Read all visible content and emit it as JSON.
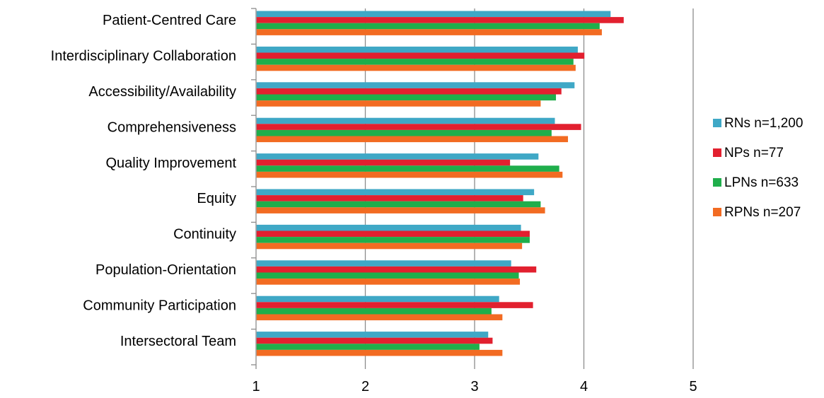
{
  "chart_data": {
    "type": "bar",
    "orientation": "horizontal",
    "title": "",
    "xlabel": "",
    "ylabel": "",
    "xlim": [
      1,
      5
    ],
    "xticks": [
      1,
      2,
      3,
      4,
      5
    ],
    "grid": true,
    "legend_position": "right",
    "categories": [
      "Patient-Centred Care",
      "Interdisciplinary Collaboration",
      "Accessibility/Availability",
      "Comprehensiveness",
      "Quality Improvement",
      "Equity",
      "Continuity",
      "Population-Orientation",
      "Community Participation",
      "Intersectoral Team"
    ],
    "series": [
      {
        "name": "RNs n=1,200",
        "color": "#3fa8c6",
        "values": [
          4.24,
          3.94,
          3.91,
          3.73,
          3.58,
          3.54,
          3.42,
          3.33,
          3.22,
          3.12
        ]
      },
      {
        "name": "NPs n=77",
        "color": "#e2202f",
        "values": [
          4.36,
          4.0,
          3.79,
          3.97,
          3.32,
          3.44,
          3.5,
          3.56,
          3.53,
          3.16
        ]
      },
      {
        "name": "LPNs n=633",
        "color": "#1fae4b",
        "values": [
          4.14,
          3.9,
          3.74,
          3.7,
          3.77,
          3.6,
          3.5,
          3.4,
          3.15,
          3.04
        ]
      },
      {
        "name": "RPNs n=207",
        "color": "#f26b22",
        "values": [
          4.16,
          3.92,
          3.6,
          3.85,
          3.8,
          3.64,
          3.43,
          3.41,
          3.25,
          3.25
        ]
      }
    ]
  }
}
